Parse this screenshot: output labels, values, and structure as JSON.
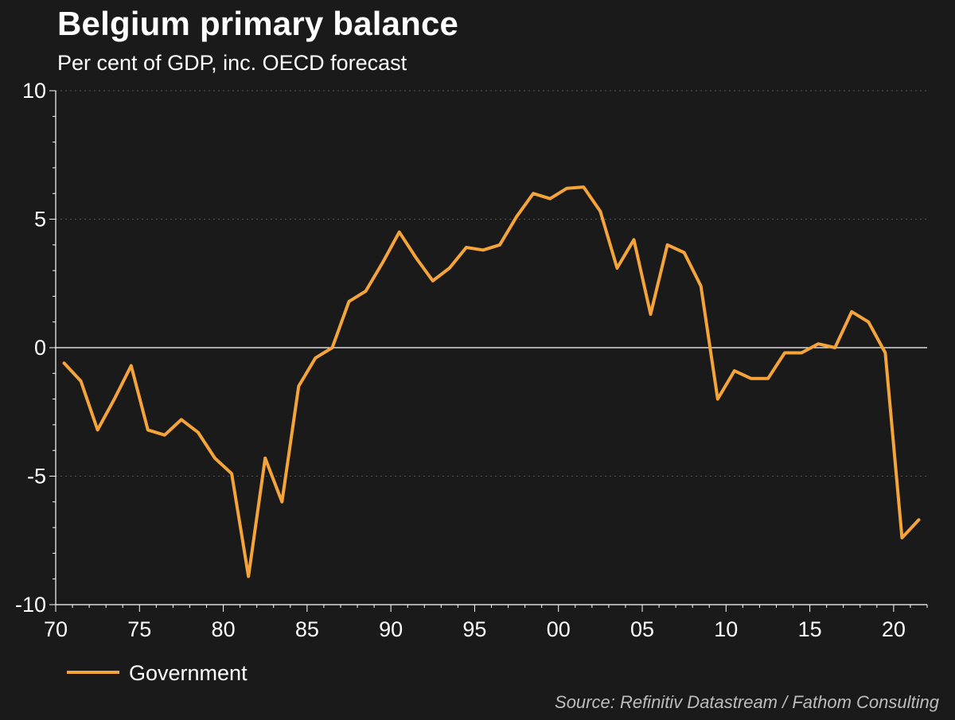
{
  "chart_data": {
    "type": "line",
    "title": "Belgium primary balance",
    "subtitle": "Per cent of GDP, inc. OECD forecast",
    "source": "Source: Refinitiv Datastream / Fathom Consulting",
    "ylim": [
      -10,
      10
    ],
    "xlim": [
      1970,
      2022
    ],
    "yticks": [
      10,
      5,
      0,
      -5,
      -10
    ],
    "yticklabels": [
      "10",
      "5",
      "0",
      "-5",
      "-10"
    ],
    "xticks": [
      1970,
      1975,
      1980,
      1985,
      1990,
      1995,
      2000,
      2005,
      2010,
      2015,
      2020
    ],
    "xticklabels": [
      "70",
      "75",
      "80",
      "85",
      "90",
      "95",
      "00",
      "05",
      "10",
      "15",
      "20"
    ],
    "grid": "horizontal dotted",
    "legend_position": "bottom-left",
    "colors": {
      "background": "#1a1a1a",
      "series": "#f5a43a",
      "axis": "#ffffff",
      "grid": "#555555"
    },
    "x": [
      1970.5,
      1971.5,
      1972.5,
      1973.5,
      1974.5,
      1975.5,
      1976.5,
      1977.5,
      1978.5,
      1979.5,
      1980.5,
      1981.5,
      1982.5,
      1983.5,
      1984.5,
      1985.5,
      1986.5,
      1987.5,
      1988.5,
      1989.5,
      1990.5,
      1991.5,
      1992.5,
      1993.5,
      1994.5,
      1995.5,
      1996.5,
      1997.5,
      1998.5,
      1999.5,
      2000.5,
      2001.5,
      2002.5,
      2003.5,
      2004.5,
      2005.5,
      2006.5,
      2007.5,
      2008.5,
      2009.5,
      2010.5,
      2011.5,
      2012.5,
      2013.5,
      2014.5,
      2015.5,
      2016.5,
      2017.5,
      2018.5,
      2019.5,
      2020.5,
      2021.5
    ],
    "series": [
      {
        "name": "Government",
        "values": [
          -0.6,
          -1.3,
          -3.2,
          -2.0,
          -0.7,
          -3.2,
          -3.4,
          -2.8,
          -3.3,
          -4.3,
          -4.9,
          -8.9,
          -4.3,
          -6.0,
          -1.5,
          -0.4,
          0.0,
          1.8,
          2.2,
          3.3,
          4.5,
          3.5,
          2.6,
          3.1,
          3.9,
          3.8,
          4.0,
          5.1,
          6.0,
          5.8,
          6.2,
          6.25,
          5.3,
          3.1,
          4.2,
          1.3,
          4.0,
          3.7,
          2.4,
          -2.0,
          -0.9,
          -1.2,
          -1.2,
          -0.2,
          -0.2,
          0.15,
          0.0,
          1.4,
          1.0,
          -0.2,
          -7.4,
          -6.7
        ]
      }
    ]
  }
}
